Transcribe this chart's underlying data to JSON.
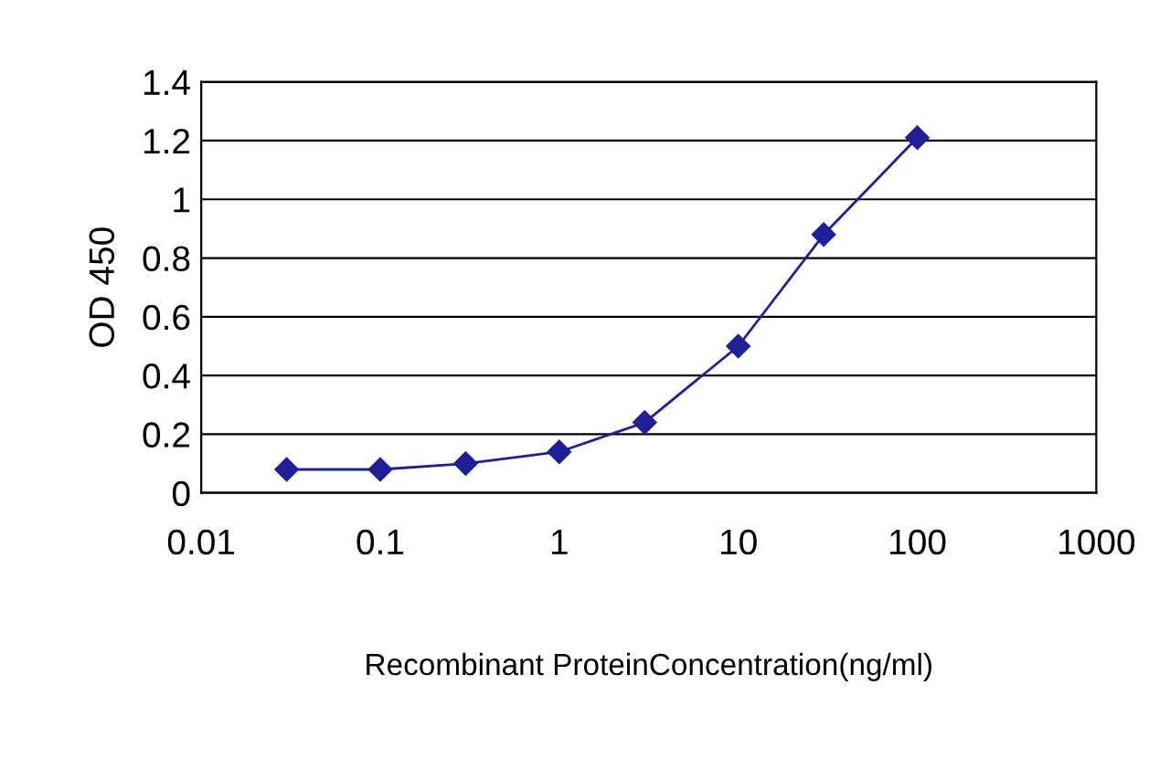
{
  "chart_data": {
    "type": "line",
    "xlabel": "Recombinant ProteinConcentration(ng/ml)",
    "ylabel": "OD 450",
    "x": [
      0.03,
      0.1,
      0.3,
      1,
      3,
      10,
      30,
      100
    ],
    "series": [
      {
        "color": "#1f1f9a",
        "values": [
          0.08,
          0.08,
          0.1,
          0.14,
          0.24,
          0.5,
          0.88,
          1.21
        ]
      }
    ],
    "log": "x",
    "xlim": [
      0.01,
      1000
    ],
    "xticks": [
      0.01,
      0.1,
      1,
      10,
      100,
      1000
    ],
    "ylim": [
      0,
      1.4
    ],
    "yticks": [
      0,
      0.2,
      0.4,
      0.6,
      0.8,
      1,
      1.2,
      1.4
    ],
    "grid": "y",
    "marker": "diamond",
    "line_style": "solid",
    "legend": false
  }
}
